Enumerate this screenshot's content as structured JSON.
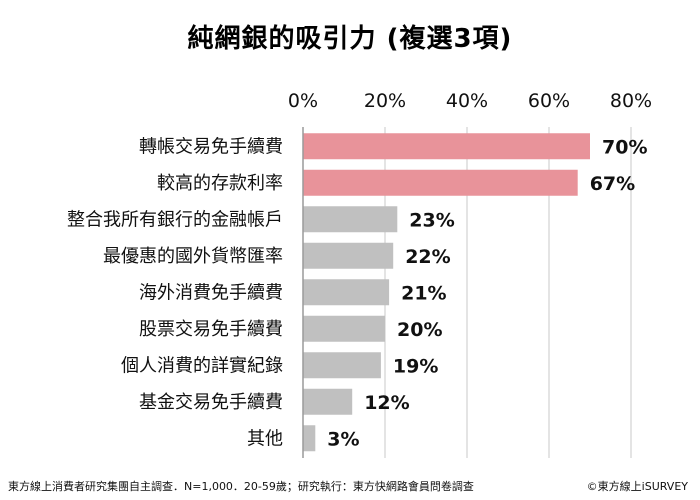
{
  "chart_data": {
    "type": "bar",
    "orientation": "horizontal",
    "title": "純網銀的吸引力 (複選3項)",
    "categories": [
      "轉帳交易免手續費",
      "較高的存款利率",
      "整合我所有銀行的金融帳戶",
      "最優惠的國外貨幣匯率",
      "海外消費免手續費",
      "股票交易免手續費",
      "個人消費的詳實紀錄",
      "基金交易免手續費",
      "其他"
    ],
    "values": [
      70,
      67,
      23,
      22,
      21,
      20,
      19,
      12,
      3
    ],
    "value_labels": [
      "70%",
      "67%",
      "23%",
      "22%",
      "21%",
      "20%",
      "19%",
      "12%",
      "3%"
    ],
    "highlight_count": 2,
    "colors": {
      "highlight": "#e8939a",
      "default": "#c0c0c0",
      "grid": "#c8c8c8"
    },
    "xlim": [
      0,
      80
    ],
    "xticks": [
      0,
      20,
      40,
      60,
      80
    ],
    "xtick_labels": [
      "0%",
      "20%",
      "40%",
      "60%",
      "80%"
    ],
    "axis_position": "top",
    "grid": true,
    "legend": "none"
  },
  "footer": {
    "source": "東方線上消費者研究集團自主調查．N=1,000．20-59歲；研究執行：東方快網路會員問卷調查",
    "copyright": "©東方線上iSURVEY"
  }
}
